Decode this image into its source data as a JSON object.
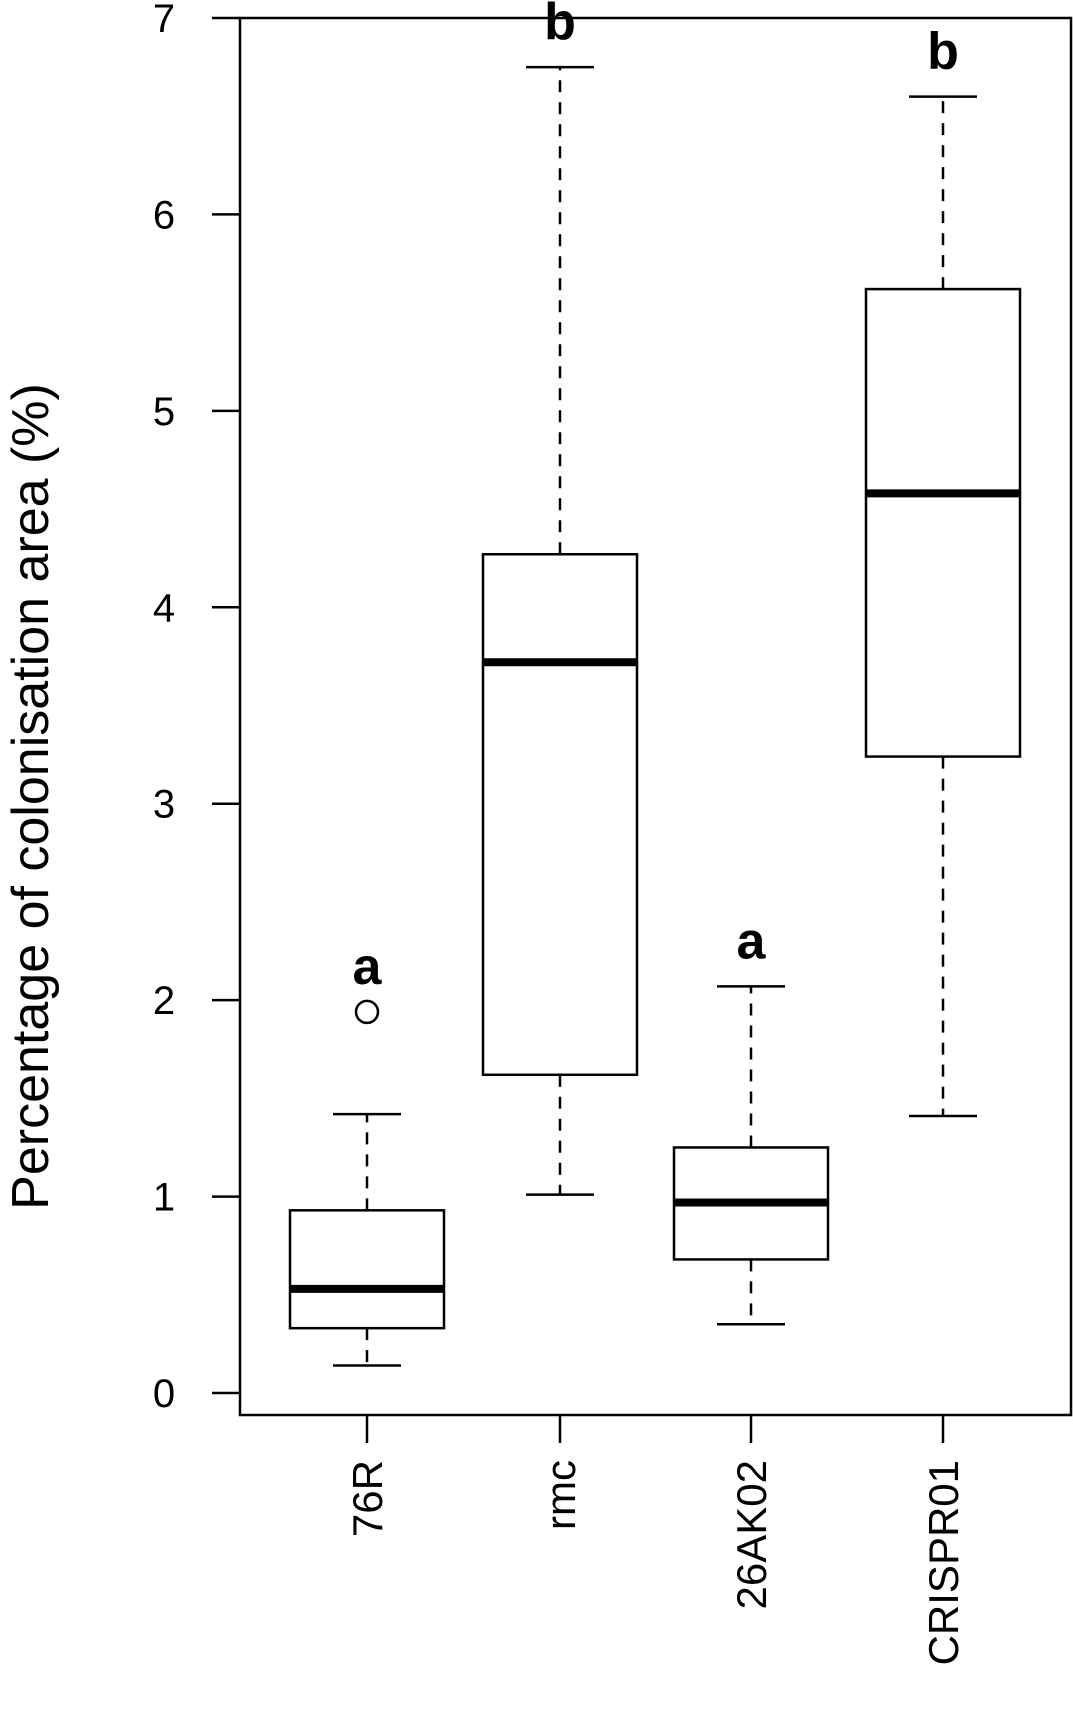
{
  "chart_data": {
    "type": "box",
    "title": "",
    "xlabel": "",
    "ylabel": "Percentage of colonisation area (%)",
    "ylim": [
      0,
      7
    ],
    "yticks": [
      0,
      1,
      2,
      3,
      4,
      5,
      6,
      7
    ],
    "yticks_text": [
      "0",
      "1",
      "2",
      "3",
      "4",
      "5",
      "6",
      "7"
    ],
    "grid": false,
    "categories": [
      "76R",
      "rmc",
      "26AK02",
      "CRISPR01"
    ],
    "boxes": [
      {
        "category": "76R",
        "whisker_low": 0.14,
        "q1": 0.33,
        "median": 0.53,
        "q3": 0.93,
        "whisker_high": 1.42,
        "outliers": [
          1.94
        ],
        "letter": "a"
      },
      {
        "category": "rmc",
        "whisker_low": 1.01,
        "q1": 1.62,
        "median": 3.72,
        "q3": 4.27,
        "whisker_high": 6.75,
        "outliers": [],
        "letter": "b"
      },
      {
        "category": "26AK02",
        "whisker_low": 0.35,
        "q1": 0.68,
        "median": 0.97,
        "q3": 1.25,
        "whisker_high": 2.07,
        "outliers": [],
        "letter": "a"
      },
      {
        "category": "CRISPR01",
        "whisker_low": 1.41,
        "q1": 3.24,
        "median": 4.58,
        "q3": 5.62,
        "whisker_high": 6.6,
        "outliers": [],
        "letter": "b"
      }
    ]
  }
}
